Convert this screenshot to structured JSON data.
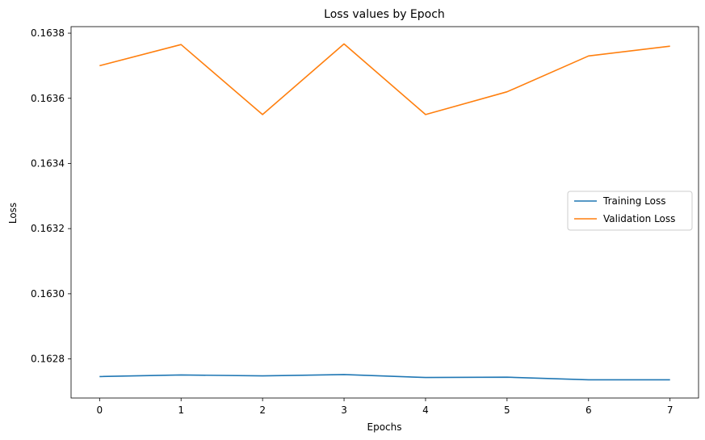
{
  "chart_data": {
    "type": "line",
    "title": "Loss values by Epoch",
    "xlabel": "Epochs",
    "ylabel": "Loss",
    "x": [
      0,
      1,
      2,
      3,
      4,
      5,
      6,
      7
    ],
    "xticks": [
      "0",
      "1",
      "2",
      "3",
      "4",
      "5",
      "6",
      "7"
    ],
    "yticks": [
      "0.1628",
      "0.1630",
      "0.1632",
      "0.1634",
      "0.1636",
      "0.1638"
    ],
    "ytick_values": [
      0.1628,
      0.163,
      0.1632,
      0.1634,
      0.1636,
      0.1638
    ],
    "xlim": [
      -0.35,
      7.35
    ],
    "ylim": [
      0.16268,
      0.16382
    ],
    "grid": false,
    "legend_position": "center-right",
    "series": [
      {
        "name": "Training Loss",
        "color": "#1f77b4",
        "values": [
          0.162746,
          0.162751,
          0.162748,
          0.162752,
          0.162743,
          0.162744,
          0.162736,
          0.162736
        ]
      },
      {
        "name": "Validation Loss",
        "color": "#ff7f0e",
        "values": [
          0.1637,
          0.163765,
          0.16355,
          0.163767,
          0.16355,
          0.16362,
          0.16373,
          0.16376
        ]
      }
    ]
  }
}
